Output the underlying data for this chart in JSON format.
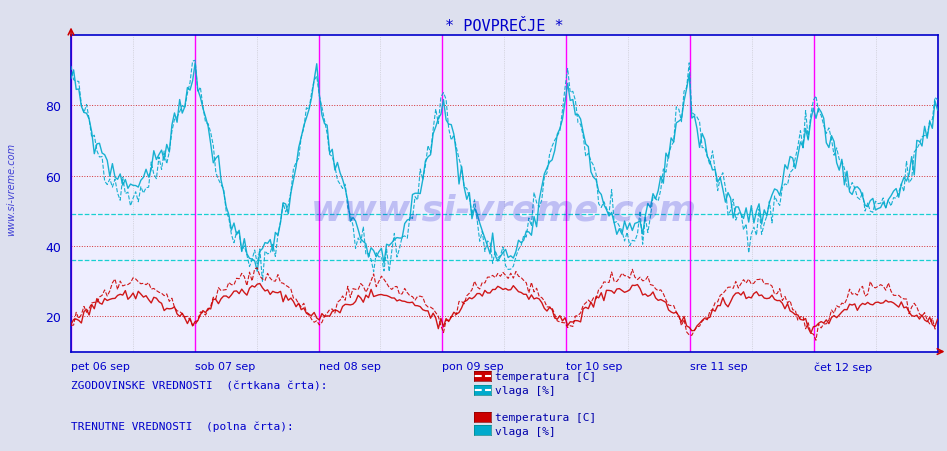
{
  "title": "* POVPREČJE *",
  "title_color": "#0000cc",
  "bg_color": "#dde0ee",
  "plot_bg_color": "#eeeeff",
  "ylim": [
    10,
    100
  ],
  "yticks": [
    20,
    40,
    60,
    80
  ],
  "cyan_hlines": [
    36,
    49
  ],
  "red_hlines": [
    20,
    40,
    60,
    80
  ],
  "watermark": "www.si-vreme.com",
  "watermark_color": "#0000cc",
  "xtick_labels": [
    "pet 06 sep",
    "sob 07 sep",
    "ned 08 sep",
    "pon 09 sep",
    "tor 10 sep",
    "sre 11 sep",
    "čet 12 sep"
  ],
  "legend_text_hist": "ZGODOVINSKE VREDNOSTI  (črtkana črta):",
  "legend_text_curr": "TRENUTNE VREDNOSTI  (polna črta):",
  "legend_color": "#0000cc",
  "temp_color": "#cc0000",
  "vlaga_color": "#00aacc",
  "n_days": 7,
  "n_points_per_day": 48
}
